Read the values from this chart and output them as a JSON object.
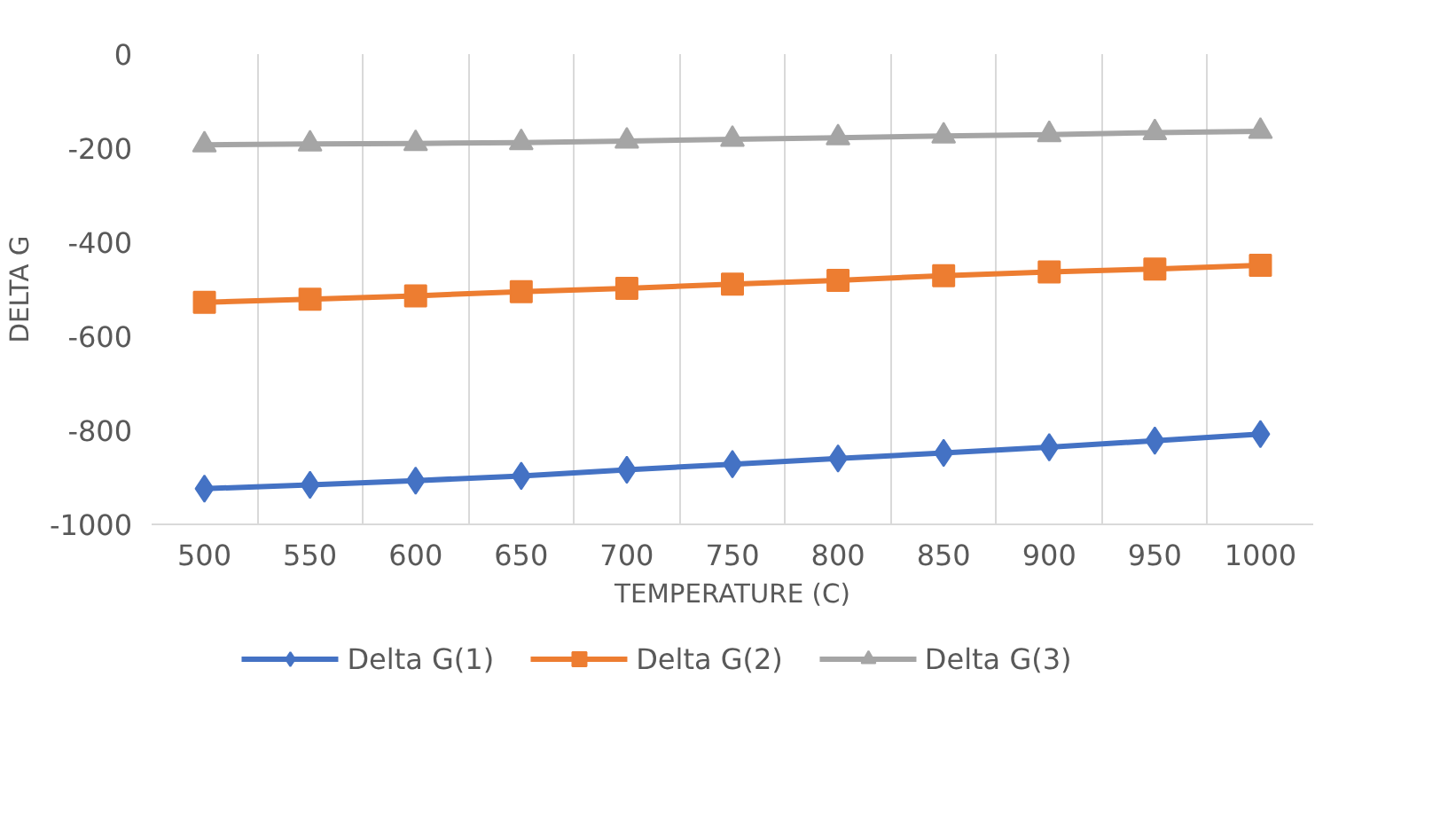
{
  "chart_data": {
    "type": "line",
    "xlabel": "TEMPERATURE (C)",
    "ylabel": "DELTA G",
    "categories": [
      "500",
      "550",
      "600",
      "650",
      "700",
      "750",
      "800",
      "850",
      "900",
      "950",
      "1000"
    ],
    "ylim": [
      -1000,
      0
    ],
    "yticks": [
      -1000,
      -800,
      -600,
      -400,
      -200,
      0
    ],
    "grid": "x",
    "legend": "bottom",
    "line_style": "solid",
    "series": [
      {
        "name": "Delta G(1)",
        "color": "#4472c4",
        "marker": "diamond",
        "values": [
          -924,
          -916,
          -907,
          -897,
          -884,
          -872,
          -860,
          -848,
          -836,
          -822,
          -808
        ]
      },
      {
        "name": "Delta G(2)",
        "color": "#ed7d31",
        "marker": "square",
        "values": [
          -528,
          -521,
          -514,
          -505,
          -498,
          -489,
          -481,
          -471,
          -463,
          -457,
          -449
        ]
      },
      {
        "name": "Delta G(3)",
        "color": "#a5a5a5",
        "marker": "triangle",
        "values": [
          -193,
          -191,
          -190,
          -188,
          -185,
          -181,
          -178,
          -174,
          -171,
          -167,
          -164
        ]
      }
    ]
  }
}
